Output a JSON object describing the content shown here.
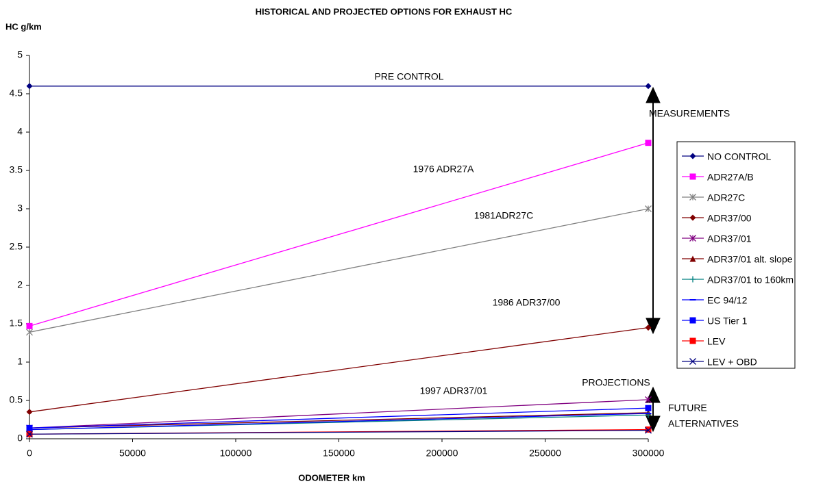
{
  "chart_data": {
    "type": "line",
    "title": "HISTORICAL AND PROJECTED OPTIONS FOR EXHAUST HC",
    "y_label": "HC g/km",
    "x_label": "ODOMETER km",
    "x": [
      0,
      300000
    ],
    "xlim": [
      0,
      300000
    ],
    "xticks": [
      0,
      50000,
      100000,
      150000,
      200000,
      250000,
      300000
    ],
    "ylim": [
      0,
      5
    ],
    "yticks": [
      0,
      0.5,
      1,
      1.5,
      2,
      2.5,
      3,
      3.5,
      4,
      4.5,
      5
    ],
    "legend": "right",
    "series": [
      {
        "name": "NO CONTROL",
        "color": "#000080",
        "marker": "diamond",
        "values": [
          4.6,
          4.6
        ]
      },
      {
        "name": "ADR27A/B",
        "color": "#ff00ff",
        "marker": "square",
        "values": [
          1.47,
          3.86
        ]
      },
      {
        "name": "ADR27C",
        "color": "#808080",
        "marker": "star",
        "values": [
          1.39,
          3.0
        ]
      },
      {
        "name": "ADR37/00",
        "color": "#800000",
        "marker": "diamond",
        "values": [
          0.35,
          1.45
        ]
      },
      {
        "name": "ADR37/01",
        "color": "#800080",
        "marker": "star",
        "values": [
          0.14,
          0.51
        ]
      },
      {
        "name": "ADR37/01 alt. slope",
        "color": "#800000",
        "marker": "triangle",
        "values": [
          0.14,
          0.34
        ]
      },
      {
        "name": "ADR37/01 to 160km",
        "color": "#008080",
        "marker": "plus",
        "values": [
          0.12,
          0.31
        ]
      },
      {
        "name": "EC 94/12",
        "color": "#0000ff",
        "marker": "dash",
        "values": [
          0.12,
          0.33
        ]
      },
      {
        "name": "US Tier 1",
        "color": "#0000ff",
        "marker": "square",
        "values": [
          0.14,
          0.4
        ]
      },
      {
        "name": "LEV",
        "color": "#ff0000",
        "marker": "square",
        "values": [
          0.06,
          0.12
        ]
      },
      {
        "name": "LEV + OBD",
        "color": "#000080",
        "marker": "x",
        "values": [
          0.06,
          0.11
        ]
      }
    ],
    "annotations": [
      "PRE CONTROL",
      "MEASUREMENTS",
      "1976 ADR27A",
      "1981ADR27C",
      "1986 ADR37/00",
      "1997 ADR37/01",
      "PROJECTIONS",
      "FUTURE",
      "ALTERNATIVES"
    ]
  }
}
